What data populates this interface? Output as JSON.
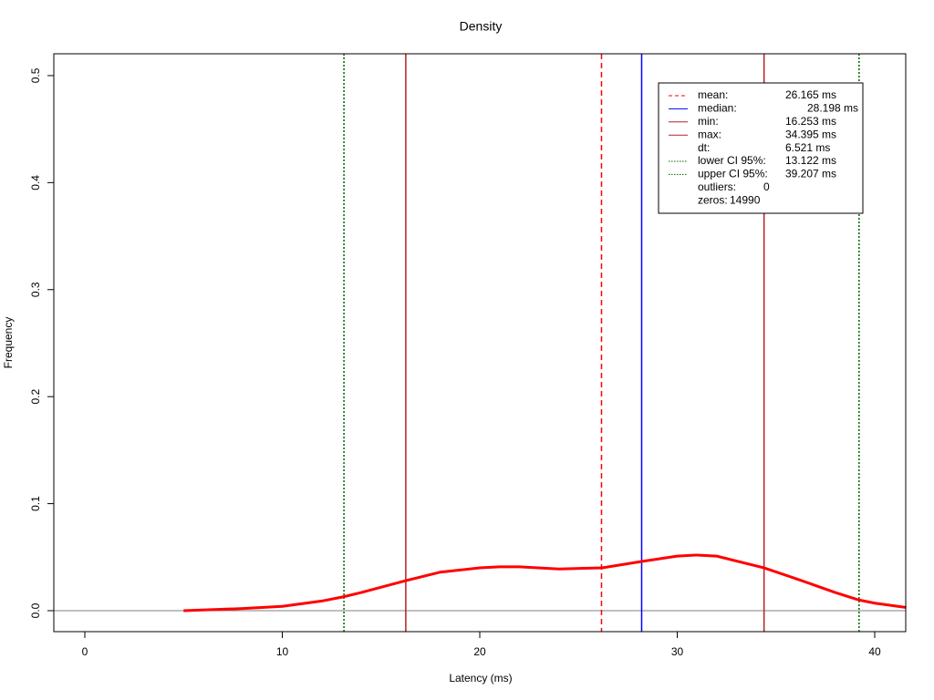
{
  "chart_data": {
    "type": "line",
    "title": "Density",
    "x_label": "Latency (ms)",
    "y_label": "Frequency",
    "xlim": [
      -1.57,
      41.57
    ],
    "ylim": [
      -0.0196,
      0.5204
    ],
    "xticks": [
      0,
      10,
      20,
      30,
      40
    ],
    "yticks": [
      {
        "value": 0,
        "label": "0.0"
      },
      0.1,
      0.2,
      0.3,
      0.4,
      0.5
    ],
    "series": [
      {
        "color": "#ff0000",
        "x": [
          5,
          8,
          10,
          12,
          13.1,
          14,
          16.25,
          18,
          20,
          21,
          22,
          24,
          26.2,
          28.2,
          30,
          31,
          32,
          34.4,
          36,
          38,
          39.2,
          40,
          41.6
        ],
        "values": [
          0,
          0.002,
          0.004,
          0.009,
          0.013,
          0.017,
          0.028,
          0.036,
          0.04,
          0.041,
          0.041,
          0.039,
          0.04,
          0.046,
          0.051,
          0.052,
          0.051,
          0.04,
          0.03,
          0.017,
          0.01,
          0.007,
          0.003
        ]
      }
    ],
    "legend": [
      {
        "name": "mean:",
        "value": 26.165,
        "value_label": "26.165 ms",
        "color": "#ff0000",
        "dash": "dashed"
      },
      {
        "name": "median:",
        "value": 28.198,
        "value_label": "28.198 ms",
        "color": "#0000ff",
        "dash": "solid"
      },
      {
        "name": "min:",
        "value": 16.253,
        "value_label": "16.253 ms",
        "color": "#b22222",
        "dash": "solid"
      },
      {
        "name": "max:",
        "value": 34.395,
        "value_label": "34.395 ms",
        "color": "#b22222",
        "dash": "solid"
      },
      {
        "name": "dt:",
        "value": 6.521,
        "value_label": "6.521 ms"
      },
      {
        "name": "lower CI 95%:",
        "value": 13.122,
        "value_label": "13.122 ms",
        "color": "#006400",
        "dash": "dotted"
      },
      {
        "name": "upper CI 95%:",
        "value": 39.207,
        "value_label": "39.207 ms",
        "color": "#006400",
        "dash": "dotted"
      },
      {
        "name": "outliers:",
        "value": 0
      },
      {
        "name": "zeros:",
        "value": 14990
      }
    ]
  }
}
